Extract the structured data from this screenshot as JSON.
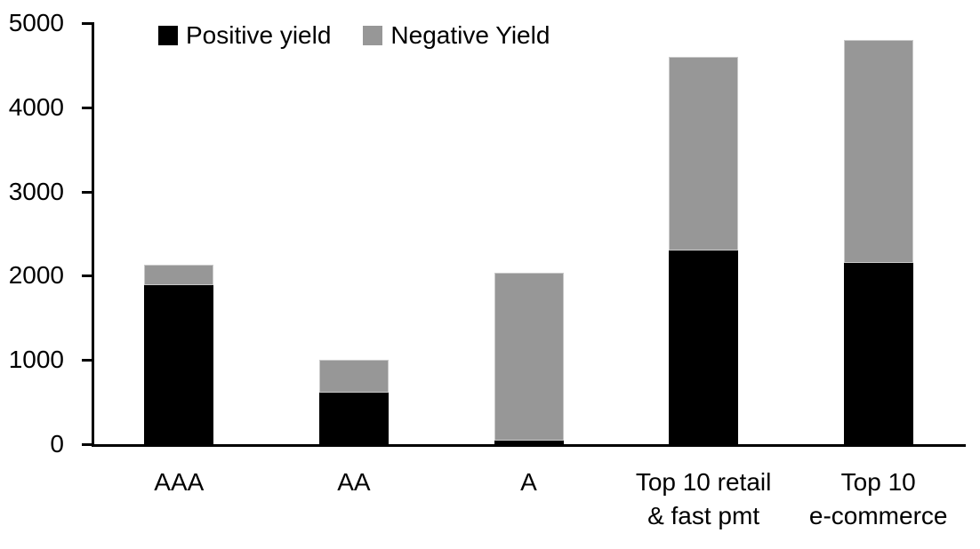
{
  "chart_data": {
    "type": "bar",
    "stacked": true,
    "categories": [
      "AAA",
      "AA",
      "A",
      "Top 10 retail\n& fast pmt",
      "Top 10\ne-commerce"
    ],
    "series": [
      {
        "name": "Positive yield",
        "color": "#000000",
        "values": [
          1890,
          610,
          40,
          2300,
          2150
        ]
      },
      {
        "name": "Negative Yield",
        "color": "#979797",
        "values": [
          240,
          390,
          2000,
          2300,
          2650
        ]
      }
    ],
    "totals": [
      2130,
      1000,
      2040,
      4600,
      4800
    ],
    "ylim": [
      0,
      5000
    ],
    "yticks": [
      0,
      1000,
      2000,
      3000,
      4000,
      5000
    ],
    "xlabel": "",
    "ylabel": "",
    "grid": false,
    "legend_position": "top"
  },
  "colors": {
    "axis": "#000000",
    "background": "#ffffff",
    "positive": "#000000",
    "negative": "#979797"
  }
}
